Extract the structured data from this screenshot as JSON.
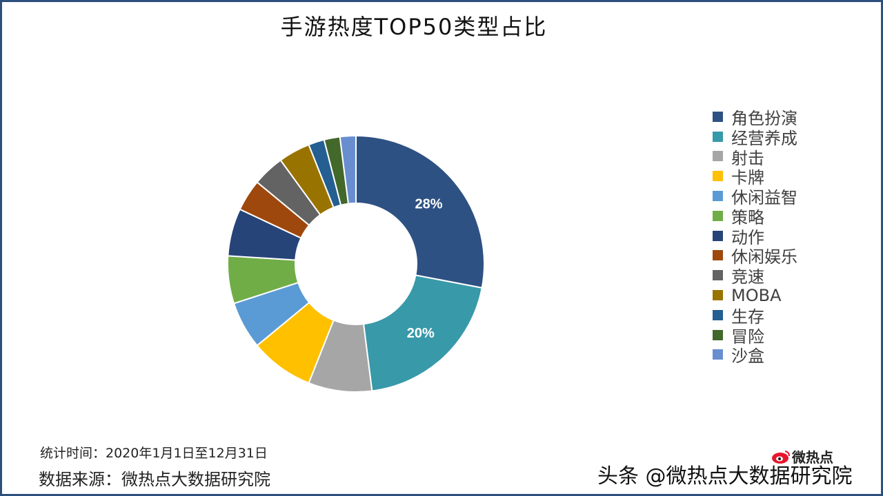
{
  "chart_data": {
    "type": "pie",
    "title": "手游热度TOP50类型占比",
    "categories": [
      "角色扮演",
      "经营养成",
      "射击",
      "卡牌",
      "休闲益智",
      "策略",
      "动作",
      "休闲娱乐",
      "竞速",
      "MOBA",
      "生存",
      "冒险",
      "沙盒"
    ],
    "values": [
      28,
      20,
      8,
      8,
      6,
      6,
      6,
      4,
      4,
      4,
      2,
      2,
      2
    ],
    "labels": [
      "28%",
      "20%",
      "",
      "",
      "",
      "",
      "",
      "",
      "",
      "",
      "",
      "",
      ""
    ],
    "colors": [
      "#2e5183",
      "#3899a9",
      "#a6a6a6",
      "#ffc000",
      "#5b9bd5",
      "#70ad47",
      "#264478",
      "#9e480e",
      "#636363",
      "#997300",
      "#255e91",
      "#43682b",
      "#698ed0"
    ],
    "legend_position": "right"
  },
  "footnote": {
    "time": "统计时间：2020年1月1日至12月31日",
    "source": "数据来源：微热点大数据研究院"
  },
  "watermark": {
    "text": "头条 @微热点大数据研究院",
    "logo_text": "微热点",
    "logo_icon": "weibo-eye-icon"
  }
}
